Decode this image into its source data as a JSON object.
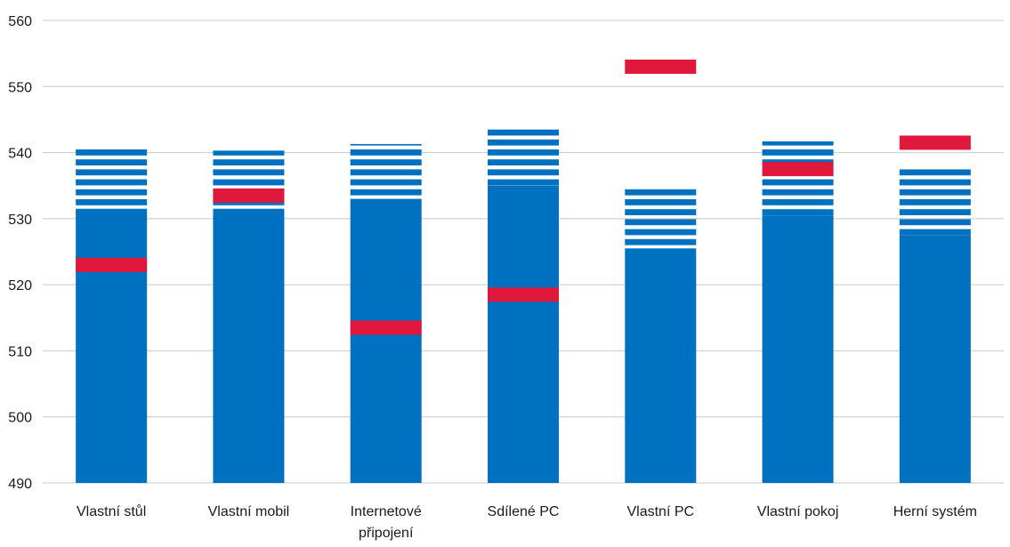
{
  "chart_data": {
    "type": "bar",
    "title": "",
    "xlabel": "",
    "ylabel": "",
    "ylim": [
      490,
      560
    ],
    "yticks": [
      490,
      500,
      510,
      520,
      530,
      540,
      550,
      560
    ],
    "grid": true,
    "colors": {
      "solid_bar": "#0070c0",
      "striped_bar": "#0070c0",
      "marker": "#e0193c",
      "gridline": "#c8c8c8"
    },
    "categories": [
      [
        "Vlastní stůl"
      ],
      [
        "Vlastní mobil"
      ],
      [
        "Internetové",
        "připojení"
      ],
      [
        "Sdílené PC"
      ],
      [
        "Vlastní PC"
      ],
      [
        "Vlastní pokoj"
      ],
      [
        "Herní systém"
      ]
    ],
    "series": [
      {
        "values": [
          531.5,
          531.5,
          533,
          535,
          525.5,
          530.5,
          527.5
        ]
      },
      {
        "values": [
          540.5,
          540.3,
          541.3,
          543.5,
          534.5,
          541.7,
          537.5
        ]
      },
      {
        "values": [
          523,
          533.5,
          513.5,
          518.5,
          553,
          537.5,
          541.5
        ]
      }
    ]
  }
}
